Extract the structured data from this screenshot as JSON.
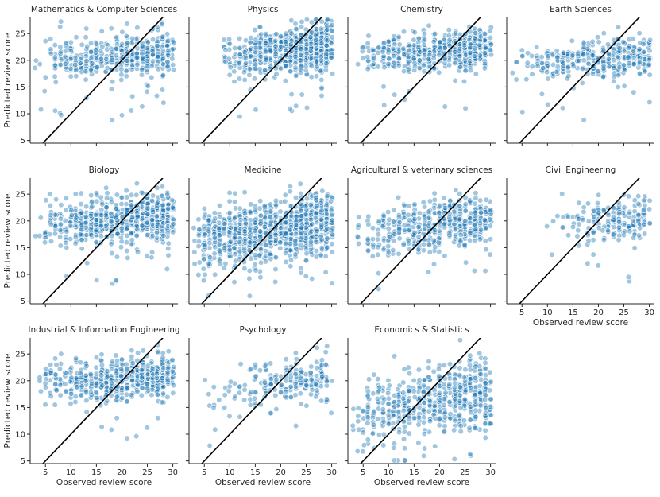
{
  "figure": {
    "x_axis_label": "Observed review score",
    "y_axis_label": "Predicted review score"
  },
  "chart_data": [
    {
      "type": "scatter",
      "title": "Mathematics & Computer Sciences",
      "xlim": [
        2,
        31
      ],
      "ylim": [
        4.5,
        28
      ],
      "xticks": [
        5,
        10,
        15,
        20,
        25,
        30
      ],
      "yticks": [
        5,
        10,
        15,
        20,
        25
      ],
      "show_xticklabels": false,
      "show_yticklabels": true,
      "show_xlabel": false,
      "show_ylabel": true,
      "reference_line": "y = x",
      "n_points": 420,
      "x_range": [
        3,
        30
      ],
      "y_center": [
        19.8,
        21.6
      ],
      "y_spread": 2.0,
      "x_skew": 1.6,
      "seed": 11
    },
    {
      "type": "scatter",
      "title": "Physics",
      "xlim": [
        2,
        31
      ],
      "ylim": [
        4.5,
        28
      ],
      "xticks": [
        5,
        10,
        15,
        20,
        25,
        30
      ],
      "yticks": [
        5,
        10,
        15,
        20,
        25
      ],
      "show_xticklabels": false,
      "show_yticklabels": false,
      "show_xlabel": false,
      "show_ylabel": false,
      "reference_line": "y = x",
      "n_points": 620,
      "x_range": [
        7,
        30
      ],
      "y_center": [
        20.5,
        22.6
      ],
      "y_spread": 2.1,
      "x_skew": 2.0,
      "seed": 23
    },
    {
      "type": "scatter",
      "title": "Chemistry",
      "xlim": [
        2,
        31
      ],
      "ylim": [
        4.5,
        28
      ],
      "xticks": [
        5,
        10,
        15,
        20,
        25,
        30
      ],
      "yticks": [
        5,
        10,
        15,
        20,
        25
      ],
      "show_xticklabels": false,
      "show_yticklabels": false,
      "show_xlabel": false,
      "show_ylabel": false,
      "reference_line": "y = x",
      "n_points": 480,
      "x_range": [
        3,
        30
      ],
      "y_center": [
        20.5,
        22.2
      ],
      "y_spread": 1.9,
      "x_skew": 1.7,
      "seed": 37
    },
    {
      "type": "scatter",
      "title": "Earth Sciences",
      "xlim": [
        2,
        31
      ],
      "ylim": [
        4.5,
        28
      ],
      "xticks": [
        5,
        10,
        15,
        20,
        25,
        30
      ],
      "yticks": [
        5,
        10,
        15,
        20,
        25
      ],
      "show_xticklabels": false,
      "show_yticklabels": false,
      "show_xlabel": false,
      "show_ylabel": false,
      "reference_line": "y = x",
      "n_points": 330,
      "x_range": [
        3,
        30
      ],
      "y_center": [
        19.3,
        20.8
      ],
      "y_spread": 1.9,
      "x_skew": 1.5,
      "seed": 41
    },
    {
      "type": "scatter",
      "title": "Biology",
      "xlim": [
        2,
        31
      ],
      "ylim": [
        4.5,
        28
      ],
      "xticks": [
        5,
        10,
        15,
        20,
        25,
        30
      ],
      "yticks": [
        5,
        10,
        15,
        20,
        25
      ],
      "show_xticklabels": false,
      "show_yticklabels": true,
      "show_xlabel": false,
      "show_ylabel": true,
      "reference_line": "y = x",
      "n_points": 620,
      "x_range": [
        3,
        30
      ],
      "y_center": [
        19.0,
        21.0
      ],
      "y_spread": 2.2,
      "x_skew": 1.6,
      "seed": 53
    },
    {
      "type": "scatter",
      "title": "Medicine",
      "xlim": [
        2,
        31
      ],
      "ylim": [
        4.5,
        28
      ],
      "xticks": [
        5,
        10,
        15,
        20,
        25,
        30
      ],
      "yticks": [
        5,
        10,
        15,
        20,
        25
      ],
      "show_xticklabels": false,
      "show_yticklabels": false,
      "show_xlabel": false,
      "show_ylabel": false,
      "reference_line": "y = x",
      "n_points": 850,
      "x_range": [
        3,
        30
      ],
      "y_center": [
        16.5,
        20.0
      ],
      "y_spread": 2.8,
      "x_skew": 1.4,
      "seed": 67
    },
    {
      "type": "scatter",
      "title": "Agricultural & veterinary sciences",
      "xlim": [
        2,
        31
      ],
      "ylim": [
        4.5,
        28
      ],
      "xticks": [
        5,
        10,
        15,
        20,
        25,
        30
      ],
      "yticks": [
        5,
        10,
        15,
        20,
        25
      ],
      "show_xticklabels": false,
      "show_yticklabels": false,
      "show_xlabel": false,
      "show_ylabel": false,
      "reference_line": "y = x",
      "n_points": 430,
      "x_range": [
        3,
        30
      ],
      "y_center": [
        17.0,
        20.5
      ],
      "y_spread": 2.3,
      "x_skew": 1.6,
      "seed": 79
    },
    {
      "type": "scatter",
      "title": "Civil Engineering",
      "xlim": [
        2,
        31
      ],
      "ylim": [
        4.5,
        28
      ],
      "xticks": [
        5,
        10,
        15,
        20,
        25,
        30
      ],
      "yticks": [
        5,
        10,
        15,
        20,
        25
      ],
      "show_xticklabels": true,
      "show_yticklabels": false,
      "show_xlabel": true,
      "show_ylabel": false,
      "reference_line": "y = x",
      "n_points": 180,
      "x_range": [
        7,
        30
      ],
      "y_center": [
        19.0,
        21.0
      ],
      "y_spread": 1.9,
      "x_skew": 2.2,
      "seed": 83
    },
    {
      "type": "scatter",
      "title": "Industrial & Information Engineering",
      "xlim": [
        2,
        31
      ],
      "ylim": [
        4.5,
        28
      ],
      "xticks": [
        5,
        10,
        15,
        20,
        25,
        30
      ],
      "yticks": [
        5,
        10,
        15,
        20,
        25
      ],
      "show_xticklabels": true,
      "show_yticklabels": true,
      "show_xlabel": true,
      "show_ylabel": true,
      "reference_line": "y = x",
      "n_points": 520,
      "x_range": [
        3,
        30
      ],
      "y_center": [
        19.5,
        20.8
      ],
      "y_spread": 2.0,
      "x_skew": 1.6,
      "seed": 97
    },
    {
      "type": "scatter",
      "title": "Psychology",
      "xlim": [
        2,
        31
      ],
      "ylim": [
        4.5,
        28
      ],
      "xticks": [
        5,
        10,
        15,
        20,
        25,
        30
      ],
      "yticks": [
        5,
        10,
        15,
        20,
        25
      ],
      "show_xticklabels": true,
      "show_yticklabels": false,
      "show_xlabel": true,
      "show_ylabel": false,
      "reference_line": "y = x",
      "n_points": 200,
      "x_range": [
        5,
        30
      ],
      "y_center": [
        17.5,
        21.0
      ],
      "y_spread": 2.2,
      "x_skew": 1.7,
      "seed": 101
    },
    {
      "type": "scatter",
      "title": "Economics & Statistics",
      "xlim": [
        2,
        31
      ],
      "ylim": [
        4.5,
        28
      ],
      "xticks": [
        5,
        10,
        15,
        20,
        25,
        30
      ],
      "yticks": [
        5,
        10,
        15,
        20,
        25
      ],
      "show_xticklabels": true,
      "show_yticklabels": false,
      "show_xlabel": true,
      "show_ylabel": false,
      "reference_line": "y = x",
      "n_points": 520,
      "x_range": [
        3,
        30
      ],
      "y_center": [
        13.5,
        18.0
      ],
      "y_spread": 3.4,
      "x_skew": 1.4,
      "seed": 113
    }
  ]
}
